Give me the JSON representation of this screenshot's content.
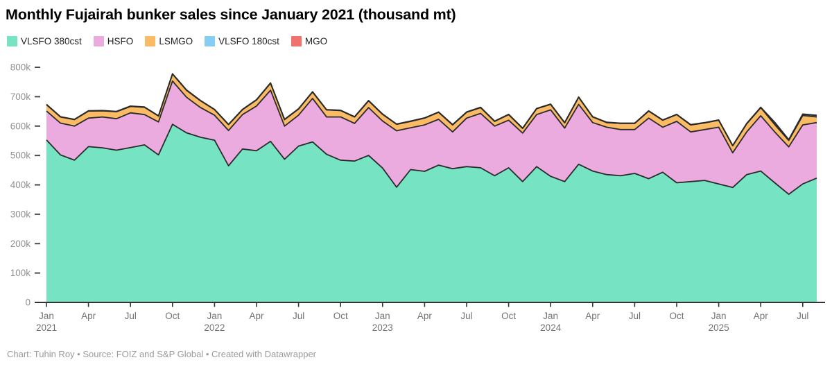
{
  "title": "Monthly Fujairah bunker sales since January 2021 (thousand mt)",
  "footer": "Chart: Tuhin Roy • Source: FOIZ and S&P Global • Created with Datawrapper",
  "colors": {
    "stroke": "#2a2a2a",
    "axis": "#333333",
    "y_tick_label": "#8f8f8f",
    "y_tick_dash": "#4a4a4a",
    "x_tick_label": "#737373",
    "footer_text": "#9a9a9a"
  },
  "legend": {
    "items": [
      {
        "label": "VLSFO 380cst",
        "color": "#76e3c3"
      },
      {
        "label": "HSFO",
        "color": "#ecabdf"
      },
      {
        "label": "LSMGO",
        "color": "#fabb64"
      },
      {
        "label": "VLSFO 180cst",
        "color": "#86cdf4"
      },
      {
        "label": "MGO",
        "color": "#f1716c"
      }
    ]
  },
  "chart_data": {
    "type": "area",
    "stacked": true,
    "unit": "thousand mt",
    "title": "Monthly Fujairah bunker sales since January 2021 (thousand mt)",
    "grid": false,
    "legend_position": "top",
    "ylim": [
      0,
      800
    ],
    "x": [
      "Jan 2021",
      "Feb 2021",
      "Mar 2021",
      "Apr 2021",
      "May 2021",
      "Jun 2021",
      "Jul 2021",
      "Aug 2021",
      "Sep 2021",
      "Oct 2021",
      "Nov 2021",
      "Dec 2021",
      "Jan 2022",
      "Feb 2022",
      "Mar 2022",
      "Apr 2022",
      "May 2022",
      "Jun 2022",
      "Jul 2022",
      "Aug 2022",
      "Sep 2022",
      "Oct 2022",
      "Nov 2022",
      "Dec 2022",
      "Jan 2023",
      "Feb 2023",
      "Mar 2023",
      "Apr 2023",
      "May 2023",
      "Jun 2023",
      "Jul 2023",
      "Aug 2023",
      "Sep 2023",
      "Oct 2023",
      "Nov 2023",
      "Dec 2023",
      "Jan 2024",
      "Feb 2024",
      "Mar 2024",
      "Apr 2024",
      "May 2024",
      "Jun 2024",
      "Jul 2024",
      "Aug 2024",
      "Sep 2024",
      "Oct 2024",
      "Nov 2024",
      "Dec 2024",
      "Jan 2025",
      "Feb 2025",
      "Mar 2025",
      "Apr 2025",
      "May 2025",
      "Jun 2025",
      "Jul 2025",
      "Aug 2025"
    ],
    "series": [
      {
        "name": "VLSFO 380cst",
        "color": "#76e3c3",
        "values": [
          553,
          502,
          484,
          530,
          526,
          518,
          527,
          536,
          502,
          606,
          577,
          562,
          552,
          465,
          522,
          516,
          548,
          487,
          532,
          546,
          504,
          484,
          481,
          500,
          457,
          392,
          452,
          446,
          467,
          455,
          462,
          458,
          431,
          458,
          411,
          462,
          429,
          411,
          470,
          447,
          435,
          431,
          439,
          421,
          443,
          407,
          411,
          415,
          403,
          391,
          435,
          447,
          407,
          368,
          403,
          423
        ]
      },
      {
        "name": "HSFO",
        "color": "#ecabdf",
        "values": [
          98,
          108,
          116,
          97,
          105,
          107,
          118,
          103,
          112,
          147,
          121,
          101,
          85,
          120,
          117,
          152,
          174,
          113,
          105,
          148,
          127,
          147,
          128,
          163,
          160,
          192,
          142,
          158,
          156,
          125,
          165,
          185,
          169,
          162,
          165,
          177,
          226,
          182,
          204,
          165,
          161,
          157,
          149,
          206,
          153,
          209,
          169,
          173,
          193,
          118,
          145,
          188,
          173,
          161,
          201,
          189
        ]
      },
      {
        "name": "LSMGO",
        "color": "#fabb64",
        "values": [
          22,
          21,
          22,
          24,
          21,
          24,
          22,
          25,
          20,
          24,
          24,
          23,
          19,
          20,
          17,
          21,
          24,
          22,
          21,
          22,
          24,
          22,
          22,
          23,
          23,
          22,
          22,
          23,
          24,
          24,
          20,
          20,
          16,
          19,
          16,
          20,
          19,
          18,
          24,
          19,
          16,
          21,
          21,
          24,
          24,
          23,
          24,
          23,
          24,
          24,
          28,
          28,
          25,
          22,
          32,
          19
        ]
      },
      {
        "name": "VLSFO 180cst",
        "color": "#86cdf4",
        "values": [
          0,
          0,
          0,
          0,
          0,
          0,
          0,
          0,
          0,
          0,
          0,
          0,
          0,
          0,
          0,
          0,
          0,
          0,
          0,
          0,
          0,
          0,
          0,
          0,
          0,
          0,
          0,
          0,
          0,
          0,
          0,
          0,
          0,
          0,
          0,
          0,
          0,
          0,
          0,
          0,
          0,
          0,
          0,
          0,
          0,
          0,
          0,
          0,
          0,
          0,
          0,
          0,
          7,
          2,
          4,
          5
        ]
      },
      {
        "name": "MGO",
        "color": "#f1716c",
        "values": [
          1,
          1,
          1,
          1,
          1,
          1,
          1,
          1,
          1,
          1,
          1,
          1,
          1,
          1,
          1,
          1,
          1,
          1,
          1,
          1,
          1,
          1,
          1,
          1,
          1,
          1,
          1,
          1,
          1,
          1,
          1,
          1,
          1,
          1,
          1,
          1,
          1,
          1,
          1,
          1,
          1,
          1,
          1,
          1,
          1,
          1,
          1,
          1,
          1,
          1,
          1,
          1,
          1,
          1,
          1,
          1
        ]
      }
    ],
    "yticks": [
      {
        "value": 0,
        "label": "0"
      },
      {
        "value": 100,
        "label": "100k"
      },
      {
        "value": 200,
        "label": "200k"
      },
      {
        "value": 300,
        "label": "300k"
      },
      {
        "value": 400,
        "label": "400k"
      },
      {
        "value": 500,
        "label": "500k"
      },
      {
        "value": 600,
        "label": "600k"
      },
      {
        "value": 700,
        "label": "700k"
      },
      {
        "value": 800,
        "label": "800k"
      }
    ],
    "xticks": [
      {
        "index": 0,
        "label": "Jan",
        "year": "2021"
      },
      {
        "index": 3,
        "label": "Apr"
      },
      {
        "index": 6,
        "label": "Jul"
      },
      {
        "index": 9,
        "label": "Oct"
      },
      {
        "index": 12,
        "label": "Jan",
        "year": "2022"
      },
      {
        "index": 15,
        "label": "Apr"
      },
      {
        "index": 18,
        "label": "Jul"
      },
      {
        "index": 21,
        "label": "Oct"
      },
      {
        "index": 24,
        "label": "Jan",
        "year": "2023"
      },
      {
        "index": 27,
        "label": "Apr"
      },
      {
        "index": 30,
        "label": "Jul"
      },
      {
        "index": 33,
        "label": "Oct"
      },
      {
        "index": 36,
        "label": "Jan",
        "year": "2024"
      },
      {
        "index": 39,
        "label": "Apr"
      },
      {
        "index": 42,
        "label": "Jul"
      },
      {
        "index": 45,
        "label": "Oct"
      },
      {
        "index": 48,
        "label": "Jan",
        "year": "2025"
      },
      {
        "index": 51,
        "label": "Apr"
      },
      {
        "index": 54,
        "label": "Jul"
      }
    ]
  }
}
